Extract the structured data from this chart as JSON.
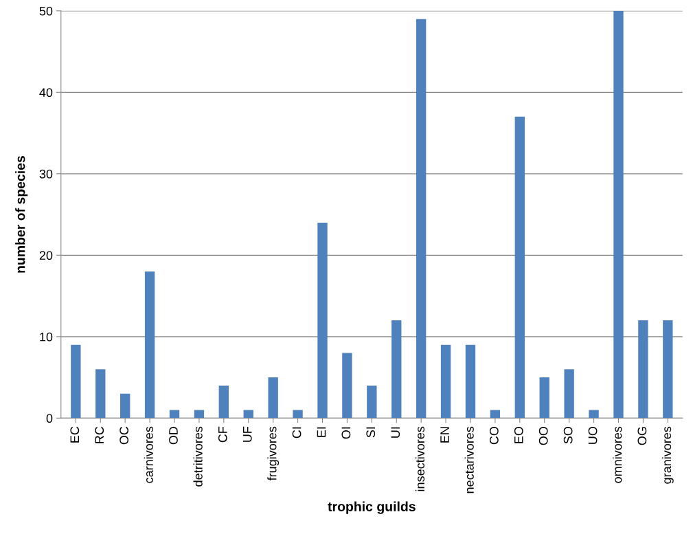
{
  "chart_data": {
    "type": "bar",
    "xlabel": "trophic guilds",
    "ylabel": "number of species",
    "categories": [
      "EC",
      "RC",
      "OC",
      "carnivores",
      "OD",
      "detritivores",
      "CF",
      "UF",
      "frugivores",
      "CI",
      "EI",
      "OI",
      "SI",
      "UI",
      "insectivores",
      "EN",
      "nectarivores",
      "CO",
      "EO",
      "OO",
      "SO",
      "UO",
      "omnivores",
      "OG",
      "granivores"
    ],
    "values": [
      9,
      6,
      3,
      18,
      1,
      1,
      4,
      1,
      5,
      1,
      24,
      8,
      4,
      12,
      49,
      9,
      9,
      1,
      37,
      5,
      6,
      1,
      50,
      12,
      12
    ],
    "color": "#4f81bd",
    "ylim": [
      0,
      50
    ],
    "yticks": [
      0,
      10,
      20,
      30,
      40,
      50
    ],
    "grid": "y",
    "legend": false
  }
}
